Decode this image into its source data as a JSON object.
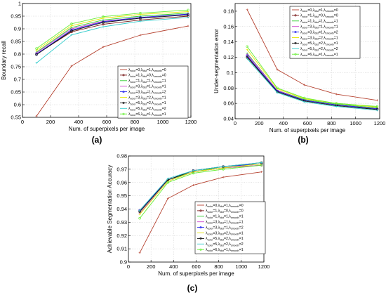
{
  "legend_entries": [
    {
      "lc": "0",
      "ld": "1",
      "ls": "0",
      "color": "#b5402e"
    },
    {
      "lc": "1",
      "ld": "0",
      "ls": "0",
      "color": "#7a1a1a"
    },
    {
      "lc": "1",
      "ld": "1",
      "ls": "1",
      "color": "#33cc33"
    },
    {
      "lc": "3",
      "ld": "1",
      "ls": "1",
      "color": "#cc44cc"
    },
    {
      "lc": "3",
      "ld": "1",
      "ls": "2",
      "color": "#2222ee"
    },
    {
      "lc": "3",
      "ld": "2",
      "ls": "1",
      "color": "#e6e600"
    },
    {
      "lc": "5",
      "ld": "2",
      "ls": "1",
      "color": "#111111"
    },
    {
      "lc": "5",
      "ld": "2",
      "ls": "2",
      "color": "#33cccc"
    },
    {
      "lc": "6",
      "ld": "1",
      "ls": "1",
      "color": "#66ee33"
    }
  ],
  "legend_prefix": "λ",
  "legend_sub_color": "color",
  "legend_sub_dist": "dist",
  "legend_sub_smooth": "smooth",
  "chart_data": [
    {
      "panel_label": "(a)",
      "type": "line",
      "xlabel": "Num. of superpixels per image",
      "ylabel": "Boundary recall",
      "xlim": [
        0,
        1200
      ],
      "ylim": [
        0.55,
        1.0
      ],
      "xticks": [
        0,
        200,
        400,
        600,
        800,
        1000,
        1200
      ],
      "yticks": [
        0.55,
        0.6,
        0.65,
        0.7,
        0.75,
        0.8,
        0.85,
        0.9,
        0.95,
        1
      ],
      "ytick_labels": [
        "0.55",
        "0.6",
        "0.65",
        "0.7",
        "0.75",
        "0.8",
        "0.85",
        "0.9",
        "0.95",
        "1"
      ],
      "grid": true,
      "legend_position": "bottom-right",
      "x": [
        100,
        350,
        575,
        840,
        1180
      ],
      "series": [
        {
          "values": [
            0.555,
            0.753,
            0.828,
            0.875,
            0.911
          ]
        },
        {
          "values": [
            0.8,
            0.888,
            0.918,
            0.935,
            0.95
          ]
        },
        {
          "values": [
            0.808,
            0.905,
            0.935,
            0.95,
            0.962
          ]
        },
        {
          "values": [
            0.805,
            0.9,
            0.93,
            0.945,
            0.958
          ]
        },
        {
          "values": [
            0.8,
            0.895,
            0.928,
            0.945,
            0.958
          ]
        },
        {
          "values": [
            0.815,
            0.912,
            0.942,
            0.957,
            0.968
          ]
        },
        {
          "values": [
            0.798,
            0.892,
            0.925,
            0.942,
            0.955
          ]
        },
        {
          "values": [
            0.765,
            0.876,
            0.908,
            0.93,
            0.945
          ]
        },
        {
          "values": [
            0.822,
            0.92,
            0.948,
            0.962,
            0.974
          ]
        }
      ]
    },
    {
      "panel_label": "(b)",
      "type": "line",
      "xlabel": "Num. of superpixels per image",
      "ylabel": "Under-segmentation error",
      "xlim": [
        0,
        1200
      ],
      "ylim": [
        0.04,
        0.19
      ],
      "xticks": [
        0,
        200,
        400,
        600,
        800,
        1000,
        1200
      ],
      "yticks": [
        0.04,
        0.06,
        0.08,
        0.1,
        0.12,
        0.14,
        0.16,
        0.18
      ],
      "ytick_labels": [
        "0.04",
        "0.06",
        "0.08",
        "0.1",
        "0.12",
        "0.14",
        "0.16",
        "0.18"
      ],
      "grid": true,
      "legend_position": "top-right",
      "x": [
        100,
        350,
        575,
        840,
        1180
      ],
      "series": [
        {
          "values": [
            0.182,
            0.104,
            0.084,
            0.072,
            0.064
          ]
        },
        {
          "values": [
            0.121,
            0.076,
            0.064,
            0.058,
            0.053
          ]
        },
        {
          "values": [
            0.125,
            0.077,
            0.065,
            0.059,
            0.054
          ]
        },
        {
          "values": [
            0.124,
            0.077,
            0.064,
            0.058,
            0.053
          ]
        },
        {
          "values": [
            0.122,
            0.076,
            0.064,
            0.058,
            0.053
          ]
        },
        {
          "values": [
            0.13,
            0.079,
            0.066,
            0.06,
            0.055
          ]
        },
        {
          "values": [
            0.12,
            0.075,
            0.063,
            0.057,
            0.052
          ]
        },
        {
          "values": [
            0.118,
            0.074,
            0.062,
            0.056,
            0.051
          ]
        },
        {
          "values": [
            0.134,
            0.08,
            0.067,
            0.06,
            0.056
          ]
        }
      ]
    },
    {
      "panel_label": "(c)",
      "type": "line",
      "xlabel": "Num. of superpixels per image",
      "ylabel": "Achievable Segmentation Accuracy",
      "xlim": [
        0,
        1200
      ],
      "ylim": [
        0.9,
        0.98
      ],
      "xticks": [
        0,
        200,
        400,
        600,
        800,
        1000,
        1200
      ],
      "yticks": [
        0.9,
        0.91,
        0.92,
        0.93,
        0.94,
        0.95,
        0.96,
        0.97,
        0.98
      ],
      "ytick_labels": [
        "0.9",
        "0.91",
        "0.92",
        "0.93",
        "0.94",
        "0.95",
        "0.96",
        "0.97",
        "0.98"
      ],
      "grid": true,
      "legend_position": "bottom-right",
      "x": [
        100,
        350,
        575,
        840,
        1180
      ],
      "series": [
        {
          "values": [
            0.907,
            0.948,
            0.958,
            0.964,
            0.968
          ]
        },
        {
          "values": [
            0.939,
            0.962,
            0.968,
            0.971,
            0.973
          ]
        },
        {
          "values": [
            0.938,
            0.962,
            0.968,
            0.972,
            0.974
          ]
        },
        {
          "values": [
            0.937,
            0.961,
            0.968,
            0.971,
            0.973
          ]
        },
        {
          "values": [
            0.939,
            0.962,
            0.969,
            0.972,
            0.974
          ]
        },
        {
          "values": [
            0.936,
            0.961,
            0.968,
            0.971,
            0.974
          ]
        },
        {
          "values": [
            0.938,
            0.962,
            0.969,
            0.972,
            0.975
          ]
        },
        {
          "values": [
            0.939,
            0.963,
            0.969,
            0.972,
            0.975
          ]
        },
        {
          "values": [
            0.933,
            0.96,
            0.967,
            0.97,
            0.973
          ]
        }
      ]
    }
  ]
}
